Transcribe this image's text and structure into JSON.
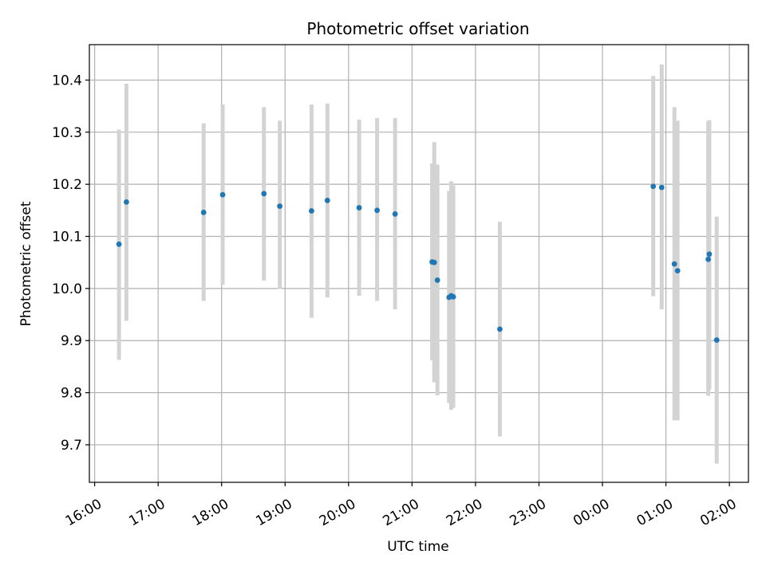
{
  "chart_data": {
    "type": "scatter",
    "title": "Photometric offset variation",
    "xlabel": "UTC time",
    "ylabel": "Photometric offset",
    "x_axis": {
      "range": [
        "15:55",
        "26:18"
      ],
      "ticks": [
        {
          "t": "16:00",
          "label": "16:00"
        },
        {
          "t": "17:00",
          "label": "17:00"
        },
        {
          "t": "18:00",
          "label": "18:00"
        },
        {
          "t": "19:00",
          "label": "19:00"
        },
        {
          "t": "20:00",
          "label": "20:00"
        },
        {
          "t": "21:00",
          "label": "21:00"
        },
        {
          "t": "22:00",
          "label": "22:00"
        },
        {
          "t": "23:00",
          "label": "23:00"
        },
        {
          "t": "24:00",
          "label": "00:00"
        },
        {
          "t": "25:00",
          "label": "01:00"
        },
        {
          "t": "26:00",
          "label": "02:00"
        }
      ]
    },
    "y_axis": {
      "range": [
        9.628,
        10.468
      ],
      "ticks": [
        "9.7",
        "9.8",
        "9.9",
        "10.0",
        "10.1",
        "10.2",
        "10.3",
        "10.4"
      ]
    },
    "grid": true,
    "point_color": "#1f77b4",
    "errorbar_color": "#d3d3d3",
    "points": [
      {
        "t": "16:23",
        "y": 10.085,
        "lo": 9.863,
        "hi": 10.305
      },
      {
        "t": "16:30",
        "y": 10.166,
        "lo": 9.938,
        "hi": 10.393
      },
      {
        "t": "17:43",
        "y": 10.146,
        "lo": 9.976,
        "hi": 10.317
      },
      {
        "t": "18:01",
        "y": 10.18,
        "lo": 10.007,
        "hi": 10.353
      },
      {
        "t": "18:40",
        "y": 10.182,
        "lo": 10.015,
        "hi": 10.348
      },
      {
        "t": "18:55",
        "y": 10.158,
        "lo": 9.999,
        "hi": 10.322
      },
      {
        "t": "19:25",
        "y": 10.149,
        "lo": 9.944,
        "hi": 10.353
      },
      {
        "t": "19:40",
        "y": 10.169,
        "lo": 9.983,
        "hi": 10.355
      },
      {
        "t": "20:10",
        "y": 10.155,
        "lo": 9.986,
        "hi": 10.324
      },
      {
        "t": "20:27",
        "y": 10.15,
        "lo": 9.976,
        "hi": 10.327
      },
      {
        "t": "20:44",
        "y": 10.143,
        "lo": 9.96,
        "hi": 10.327
      },
      {
        "t": "21:19",
        "y": 10.051,
        "lo": 9.862,
        "hi": 10.24
      },
      {
        "t": "21:21",
        "y": 10.05,
        "lo": 9.82,
        "hi": 10.281
      },
      {
        "t": "21:24",
        "y": 10.016,
        "lo": 9.795,
        "hi": 10.238
      },
      {
        "t": "21:35",
        "y": 9.983,
        "lo": 9.78,
        "hi": 10.187
      },
      {
        "t": "21:37",
        "y": 9.986,
        "lo": 9.767,
        "hi": 10.206
      },
      {
        "t": "21:39",
        "y": 9.984,
        "lo": 9.771,
        "hi": 10.198
      },
      {
        "t": "22:23",
        "y": 9.922,
        "lo": 9.716,
        "hi": 10.128
      },
      {
        "t": "24:48",
        "y": 10.196,
        "lo": 9.985,
        "hi": 10.408
      },
      {
        "t": "24:56",
        "y": 10.194,
        "lo": 9.96,
        "hi": 10.43
      },
      {
        "t": "25:08",
        "y": 10.047,
        "lo": 9.747,
        "hi": 10.348
      },
      {
        "t": "25:11",
        "y": 10.034,
        "lo": 9.747,
        "hi": 10.322
      },
      {
        "t": "25:40",
        "y": 10.056,
        "lo": 9.794,
        "hi": 10.32
      },
      {
        "t": "25:41",
        "y": 10.066,
        "lo": 9.806,
        "hi": 10.323
      },
      {
        "t": "25:48",
        "y": 9.901,
        "lo": 9.664,
        "hi": 10.138
      }
    ]
  }
}
